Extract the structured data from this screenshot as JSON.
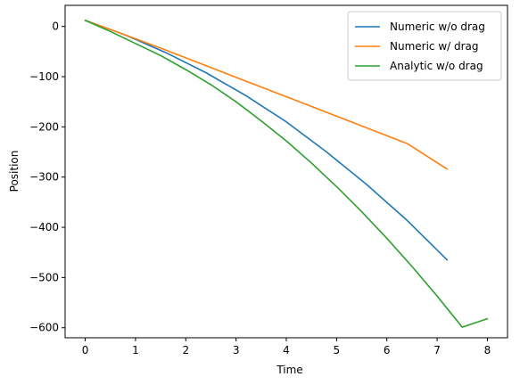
{
  "chart_data": {
    "type": "line",
    "title": "",
    "xlabel": "Time",
    "ylabel": "Position",
    "xlim": [
      -0.4,
      8.4
    ],
    "ylim": [
      -620,
      42
    ],
    "xticks": [
      0,
      1,
      2,
      3,
      4,
      5,
      6,
      7,
      8
    ],
    "yticks": [
      0,
      -100,
      -200,
      -300,
      -400,
      -500,
      -600
    ],
    "ytick_labels": [
      "0",
      "−100",
      "−200",
      "−300",
      "−400",
      "−500",
      "−600"
    ],
    "grid": false,
    "legend_position": "top-right",
    "series": [
      {
        "name": "Numeric w/o drag",
        "color": "#1f77b4",
        "x": [
          0,
          0.8,
          1.6,
          2.4,
          3.2,
          4.0,
          4.8,
          5.6,
          6.4,
          7.2
        ],
        "y": [
          12,
          -17,
          -52,
          -92,
          -138,
          -190,
          -250,
          -315,
          -386,
          -465
        ]
      },
      {
        "name": "Numeric w/ drag",
        "color": "#ff7f0e",
        "x": [
          0,
          0.8,
          1.6,
          2.4,
          3.2,
          4.0,
          4.8,
          5.6,
          6.4,
          7.2
        ],
        "y": [
          12,
          -17,
          -47,
          -78,
          -109,
          -140,
          -171,
          -202,
          -233,
          -284
        ]
      },
      {
        "name": "Analytic w/o drag",
        "color": "#2ca02c",
        "x": [
          0,
          0.5,
          1.0,
          1.5,
          2.0,
          2.5,
          3.0,
          3.5,
          4.0,
          4.5,
          5.0,
          5.5,
          6.0,
          6.5,
          7.0,
          7.5,
          8.0
        ],
        "y": [
          12,
          -10,
          -34,
          -58,
          -86,
          -116,
          -150,
          -188,
          -228,
          -272,
          -319,
          -369,
          -422,
          -478,
          -537,
          -599,
          -582
        ]
      }
    ]
  }
}
